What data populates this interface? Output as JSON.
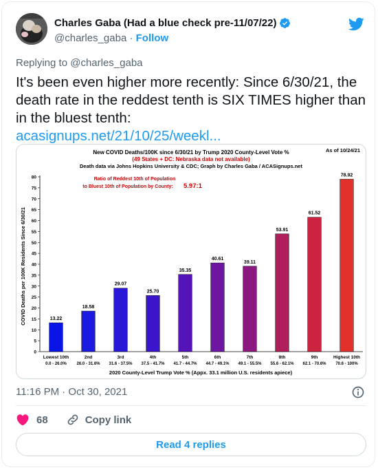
{
  "tweet": {
    "author_name": "Charles Gaba (Had a blue check pre-11/07/22)",
    "handle": "@charles_gaba",
    "separator": "·",
    "follow_label": "Follow",
    "reply_to": "Replying to @charles_gaba",
    "text": "It's been even higher more recently: Since 6/30/21, the death rate in the reddest tenth is SIX TIMES higher than in the bluest tenth:",
    "link": "acasignups.net/21/10/25/weekl...",
    "timestamp": "11:16 PM · Oct 30, 2021",
    "likes": "68",
    "copy_link_label": "Copy link",
    "read_replies_label": "Read 4 replies",
    "icons": {
      "verified": "verified-badge-icon",
      "twitter": "twitter-bird-icon",
      "info": "info-icon",
      "heart": "heart-icon",
      "copy": "link-icon"
    },
    "colors": {
      "accent": "#1d9bf0",
      "like": "#f91880",
      "text": "#0f1419",
      "muted": "#536471"
    }
  },
  "chart_data": {
    "type": "bar",
    "title": "New COVID Deaths/100K since 6/30/21 by Trump 2020 County-Level Vote %",
    "subtitle": "(49 States + DC: Nebraska data not available)",
    "source": "Death data via Johns Hopkins University & CDC; Graph by Charles Gaba / ACASignups.net",
    "date_note": "As of 10/24/21",
    "annotation_label": "Ratio of Reddest 10th of Population to Bluest 10th of Population by County:",
    "annotation_label_line1": "Ratio of Reddest 10th of Population",
    "annotation_label_line2": "to Bluest 10th of Population by County:",
    "annotation_value": "5.97:1",
    "xlabel": "2020 County-Level Trump Vote % (Appx. 33.1 million U.S. residents apiece)",
    "ylabel": "COVID Deaths per 100K Residents Since 6/30/21",
    "ylim": [
      0,
      80
    ],
    "yticks": [
      0,
      5,
      10,
      15,
      20,
      25,
      30,
      35,
      40,
      45,
      50,
      55,
      60,
      65,
      70,
      75,
      80
    ],
    "grid": false,
    "categories": [
      "Lowest 10th",
      "2nd",
      "3rd",
      "4th",
      "5th",
      "6th",
      "7th",
      "8th",
      "9th",
      "Highest 10th"
    ],
    "ranges": [
      "0.0 - 26.0%",
      "26.0 - 31.6%",
      "31.6 - 37.5%",
      "37.5 - 41.7%",
      "41.7 - 44.7%",
      "44.7 - 49.1%",
      "49.1 - 55.5%",
      "55.6 - 62.1%",
      "62.1 - 70.6%",
      "70.6 - 100%"
    ],
    "values": [
      13.22,
      18.58,
      29.07,
      25.7,
      35.35,
      40.61,
      39.11,
      53.91,
      61.52,
      78.92
    ],
    "value_labels": [
      "13.22",
      "18.58",
      "29.07",
      "25.70",
      "35.35",
      "40.61",
      "39.11",
      "53.91",
      "61.52",
      "78.92"
    ],
    "colors": [
      "#0a14e6",
      "#1a1ae0",
      "#2a18d8",
      "#3b15cc",
      "#5414b8",
      "#6c16a2",
      "#8a1a80",
      "#b01e5c",
      "#cc2340",
      "#e4302a"
    ]
  }
}
